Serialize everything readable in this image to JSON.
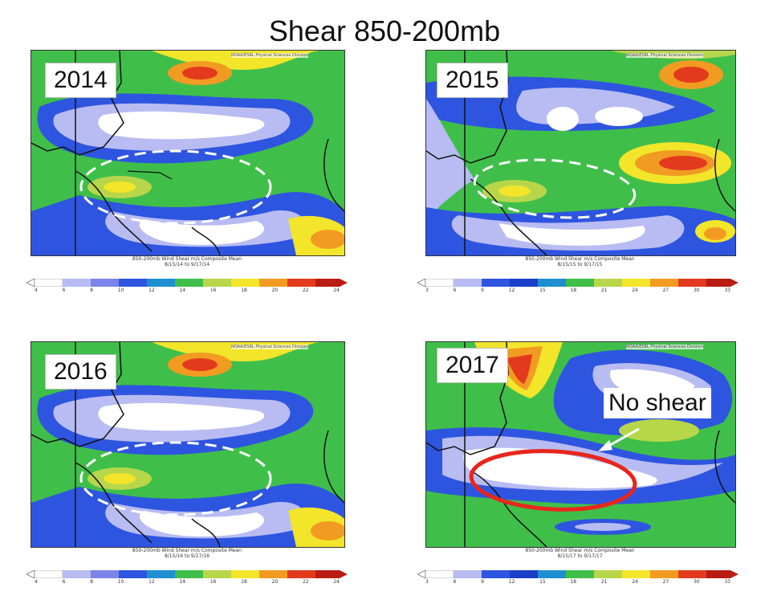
{
  "title": "Shear 850-200mb",
  "panels": [
    {
      "year": "2014",
      "header": "NOAA/ESRL Physical Sciences Division",
      "caption_1": "850-200mb Wind Shear m/s Composite Mean",
      "caption_2": "8/15/14  to  9/17/14",
      "ticks": [
        "4",
        "6",
        "8",
        "10",
        "12",
        "14",
        "16",
        "18",
        "20",
        "22",
        "24"
      ]
    },
    {
      "year": "2015",
      "header": "NOAA/ESRL Physical Sciences Division",
      "caption_1": "850-200mb Wind Shear m/s Composite Mean",
      "caption_2": "8/15/15  to  9/17/15",
      "ticks": [
        "3",
        "6",
        "9",
        "12",
        "15",
        "18",
        "21",
        "24",
        "27",
        "30",
        "33"
      ]
    },
    {
      "year": "2016",
      "header": "NOAA/ESRL Physical Sciences Division",
      "caption_1": "850-200mb Wind Shear m/s Composite Mean",
      "caption_2": "8/15/16  to  9/17/16",
      "ticks": [
        "4",
        "6",
        "8",
        "10",
        "12",
        "14",
        "16",
        "18",
        "20",
        "22",
        "24"
      ]
    },
    {
      "year": "2017",
      "header": "NOAA/ESRL Physical Sciences Division",
      "caption_1": "850-200mb Wind Shear m/s Composite Mean",
      "caption_2": "8/15/17  to  9/17/17",
      "ticks": [
        "3",
        "6",
        "9",
        "12",
        "15",
        "18",
        "21",
        "24",
        "27",
        "30",
        "33"
      ]
    }
  ],
  "annotation": {
    "label": "No shear",
    "arrow_color": "#ffffff",
    "ellipse_color": "#e8261c"
  },
  "colors": {
    "white": "#ffffff",
    "lavender": "#b8bcf2",
    "blue": "#2e55e0",
    "darkblue": "#1a3fc9",
    "green": "#3fbf4a",
    "yellowgreen": "#b8d64a",
    "yellow": "#f2e52a",
    "orange": "#f29b22",
    "red": "#e33a1e",
    "darkred": "#b81c12"
  }
}
